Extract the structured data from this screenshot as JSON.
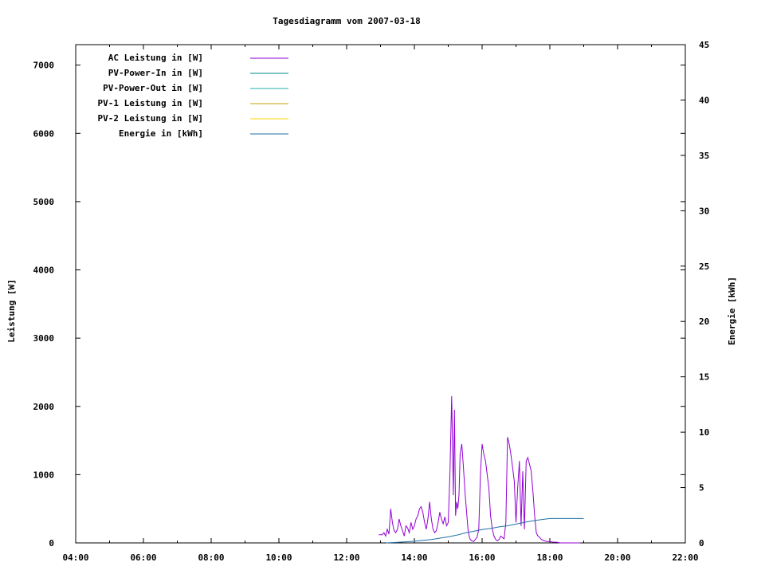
{
  "chart_data": {
    "type": "line",
    "title": "Tagesdiagramm vom 2007-03-18",
    "ylabel": "Leistung [W]",
    "y2label": "Energie [kWh]",
    "xlim": [
      "04:00",
      "22:00"
    ],
    "ylim": [
      0,
      7300
    ],
    "y2lim": [
      0,
      45
    ],
    "x_ticks": [
      "04:00",
      "06:00",
      "08:00",
      "10:00",
      "12:00",
      "14:00",
      "16:00",
      "18:00",
      "20:00",
      "22:00"
    ],
    "y_ticks": [
      0,
      1000,
      2000,
      3000,
      4000,
      5000,
      6000,
      7000
    ],
    "y2_ticks": [
      0,
      5,
      10,
      15,
      20,
      25,
      30,
      35,
      40,
      45
    ],
    "grid": false,
    "legend_position": "top-left",
    "series": [
      {
        "name": "AC Leistung in [W]",
        "color": "#9400d3",
        "axis": "left",
        "x": [
          "12:57",
          "13:03",
          "13:06",
          "13:09",
          "13:12",
          "13:15",
          "13:18",
          "13:21",
          "13:24",
          "13:27",
          "13:30",
          "13:33",
          "13:36",
          "13:39",
          "13:42",
          "13:45",
          "13:48",
          "13:51",
          "13:54",
          "13:57",
          "14:00",
          "14:03",
          "14:06",
          "14:09",
          "14:12",
          "14:15",
          "14:18",
          "14:21",
          "14:24",
          "14:27",
          "14:30",
          "14:33",
          "14:36",
          "14:39",
          "14:42",
          "14:45",
          "14:48",
          "14:51",
          "14:54",
          "14:57",
          "15:00",
          "15:03",
          "15:06",
          "15:09",
          "15:11",
          "15:13",
          "15:15",
          "15:17",
          "15:19",
          "15:21",
          "15:24",
          "15:27",
          "15:30",
          "15:33",
          "15:35",
          "15:37",
          "15:39",
          "15:42",
          "15:45",
          "15:48",
          "15:51",
          "15:54",
          "15:57",
          "16:00",
          "16:03",
          "16:06",
          "16:09",
          "16:12",
          "16:15",
          "16:18",
          "16:21",
          "16:24",
          "16:27",
          "16:30",
          "16:33",
          "16:36",
          "16:39",
          "16:42",
          "16:45",
          "16:48",
          "16:51",
          "16:54",
          "16:57",
          "17:00",
          "17:03",
          "17:06",
          "17:09",
          "17:12",
          "17:15",
          "17:18",
          "17:21",
          "17:24",
          "17:27",
          "17:30",
          "17:33",
          "17:36",
          "17:39",
          "17:42",
          "17:45",
          "17:48",
          "17:51",
          "17:54",
          "17:57",
          "18:00",
          "18:06",
          "18:12",
          "18:18",
          "18:24",
          "18:30",
          "18:36",
          "18:42",
          "18:48",
          "18:54"
        ],
        "values": [
          120,
          120,
          150,
          100,
          200,
          130,
          500,
          300,
          180,
          150,
          200,
          350,
          250,
          180,
          100,
          250,
          220,
          150,
          300,
          200,
          250,
          350,
          400,
          500,
          530,
          450,
          300,
          200,
          350,
          600,
          350,
          200,
          150,
          180,
          300,
          450,
          350,
          280,
          380,
          250,
          300,
          1000,
          2150,
          700,
          1950,
          400,
          600,
          500,
          700,
          1300,
          1450,
          1100,
          700,
          400,
          200,
          100,
          50,
          30,
          20,
          50,
          80,
          200,
          1000,
          1450,
          1300,
          1200,
          1000,
          800,
          400,
          200,
          100,
          50,
          30,
          50,
          100,
          80,
          60,
          300,
          1550,
          1450,
          1300,
          1100,
          900,
          300,
          800,
          1200,
          250,
          1050,
          200,
          1200,
          1250,
          1150,
          1050,
          750,
          400,
          150,
          100,
          80,
          50,
          40,
          30,
          20,
          20,
          20,
          10,
          10,
          0,
          0,
          0,
          0,
          0,
          0,
          0
        ]
      },
      {
        "name": "PV-Power-In in [W]",
        "color": "#008b8b",
        "axis": "left",
        "x": [],
        "values": []
      },
      {
        "name": "PV-Power-Out in [W]",
        "color": "#20b2aa",
        "axis": "left",
        "x": [],
        "values": []
      },
      {
        "name": "PV-1 Leistung in [W]",
        "color": "#c8a000",
        "axis": "left",
        "x": [],
        "values": []
      },
      {
        "name": "PV-2 Leistung in [W]",
        "color": "#ffd700",
        "axis": "left",
        "x": [],
        "values": []
      },
      {
        "name": "Energie in [kWh]",
        "color": "#1f6fa8",
        "axis": "right",
        "x": [
          "13:10",
          "13:30",
          "14:00",
          "14:30",
          "15:00",
          "15:15",
          "15:30",
          "15:45",
          "16:00",
          "16:15",
          "16:30",
          "16:45",
          "17:00",
          "17:15",
          "17:30",
          "17:45",
          "18:00",
          "18:15",
          "18:30",
          "18:45",
          "19:00"
        ],
        "values": [
          0,
          0.05,
          0.15,
          0.3,
          0.55,
          0.7,
          0.9,
          1.05,
          1.2,
          1.3,
          1.45,
          1.55,
          1.7,
          1.85,
          2.0,
          2.1,
          2.2,
          2.2,
          2.2,
          2.2,
          2.2
        ]
      }
    ]
  }
}
